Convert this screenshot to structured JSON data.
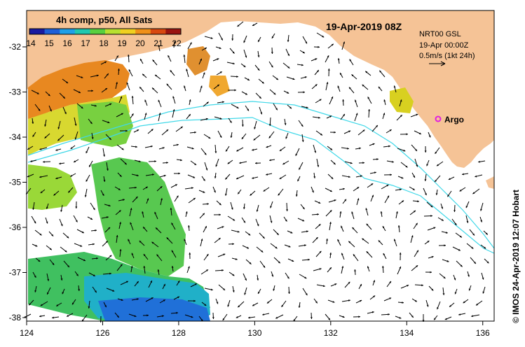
{
  "legend": {
    "title": "4h comp, p50, All Sats",
    "ticks": [
      "14",
      "15",
      "16",
      "17",
      "18",
      "19",
      "20",
      "21",
      "22"
    ],
    "colors": [
      "#1a1aa0",
      "#1f5fd8",
      "#1fa0e8",
      "#20c8b0",
      "#58d040",
      "#b8e030",
      "#f0d020",
      "#f09018",
      "#d84810",
      "#9a1410"
    ]
  },
  "header": {
    "date": "19-Apr-2019 08Z"
  },
  "info": {
    "line1": "NRT00 GSL",
    "line2": "19-Apr 00:00Z",
    "line3": "0.5m/s (1kt 24h)"
  },
  "argo": {
    "label": "Argo",
    "color": "#e020e0"
  },
  "credit": "© IMOS 24-Apr-2019 12:07 Hobart",
  "axes": {
    "x_ticks": [
      "124",
      "126",
      "128",
      "130",
      "132",
      "134",
      "136"
    ],
    "y_ticks": [
      "-32",
      "-33",
      "-34",
      "-35",
      "-36",
      "-37",
      "-38"
    ]
  },
  "colors": {
    "land": "#f5c396",
    "ocean": "#ffffff",
    "isobath": "#40d8e8"
  }
}
